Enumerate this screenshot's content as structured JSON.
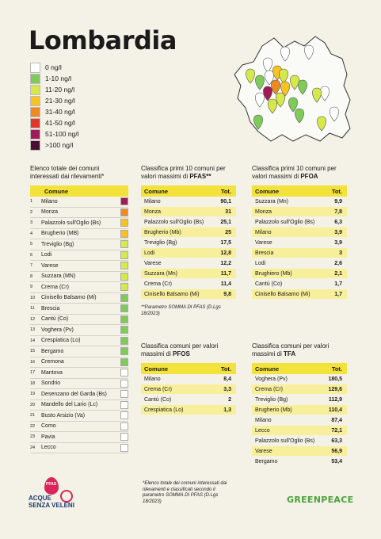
{
  "title": "Lombardia",
  "legend": [
    {
      "label": "0 ng/l",
      "color": "#ffffff"
    },
    {
      "label": "1-10 ng/l",
      "color": "#7ecb5a"
    },
    {
      "label": "11-20 ng/l",
      "color": "#d7e84a"
    },
    {
      "label": "21-30 ng/l",
      "color": "#f8c321"
    },
    {
      "label": "31-40 ng/l",
      "color": "#f08a1e"
    },
    {
      "label": "41-50 ng/l",
      "color": "#e2362a"
    },
    {
      "label": "51-100 ng/l",
      "color": "#a11a58"
    },
    {
      ">100": "",
      "label": ">100 ng/l",
      "color": "#4a0d33"
    }
  ],
  "left_list": {
    "title": "Elenco totale dei comuni interessati dai rilevamenti*",
    "header": "Comune",
    "rows": [
      {
        "n": "1",
        "name": "Milano",
        "color": "#a11a58"
      },
      {
        "n": "2",
        "name": "Monza",
        "color": "#f08a1e"
      },
      {
        "n": "3",
        "name": "Palazzolo sull'Oglio (Bs)",
        "color": "#f8c321"
      },
      {
        "n": "4",
        "name": "Brugherio (MB)",
        "color": "#f8c321"
      },
      {
        "n": "5",
        "name": "Treviglio (Bg)",
        "color": "#d7e84a"
      },
      {
        "n": "6",
        "name": "Lodi",
        "color": "#d7e84a"
      },
      {
        "n": "7",
        "name": "Varese",
        "color": "#d7e84a"
      },
      {
        "n": "8",
        "name": "Suzzara (MN)",
        "color": "#d7e84a"
      },
      {
        "n": "9",
        "name": "Crema (Cr)",
        "color": "#d7e84a"
      },
      {
        "n": "10",
        "name": "Cinisello Balsamo (Mi)",
        "color": "#7ecb5a"
      },
      {
        "n": "11",
        "name": "Brescia",
        "color": "#7ecb5a"
      },
      {
        "n": "12",
        "name": "Cantù (Co)",
        "color": "#7ecb5a"
      },
      {
        "n": "13",
        "name": "Voghera (Pv)",
        "color": "#7ecb5a"
      },
      {
        "n": "14",
        "name": "Crespiatica (Lo)",
        "color": "#7ecb5a"
      },
      {
        "n": "15",
        "name": "Bergamo",
        "color": "#7ecb5a"
      },
      {
        "n": "16",
        "name": "Cremona",
        "color": "#7ecb5a"
      },
      {
        "n": "17",
        "name": "Mantova",
        "color": "#ffffff"
      },
      {
        "n": "18",
        "name": "Sondrio",
        "color": "#ffffff"
      },
      {
        "n": "19",
        "name": "Desenzano del Garda (Bs)",
        "color": "#ffffff"
      },
      {
        "n": "20",
        "name": "Mandello del Lario (Lc)",
        "color": "#ffffff"
      },
      {
        "n": "21",
        "name": "Busto Arsizio (Va)",
        "color": "#ffffff"
      },
      {
        "n": "22",
        "name": "Como",
        "color": "#ffffff"
      },
      {
        "n": "23",
        "name": "Pavia",
        "color": "#ffffff"
      },
      {
        "n": "24",
        "name": "Lecco",
        "color": "#ffffff"
      }
    ]
  },
  "pfas": {
    "title_a": "Classifica primi 10 comuni per valori massimi di ",
    "title_b": "PFAS**",
    "h_comune": "Comune",
    "h_tot": "Tot.",
    "rows": [
      {
        "c": "Milano",
        "v": "90,1"
      },
      {
        "c": "Monza",
        "v": "31"
      },
      {
        "c": "Palazzolo sull'Oglio (Bs)",
        "v": "25,1"
      },
      {
        "c": "Brugherio (Mb)",
        "v": "25"
      },
      {
        "c": "Treviglio (Bg)",
        "v": "17,5"
      },
      {
        "c": "Lodi",
        "v": "12,8"
      },
      {
        "c": "Varese",
        "v": "12,2"
      },
      {
        "c": "Suzzara (Mn)",
        "v": "11,7"
      },
      {
        "c": "Crema (Cr)",
        "v": "11,4"
      },
      {
        "c": "Cinisello Balsamo (Mi)",
        "v": "9,8"
      }
    ],
    "note": "**Parametro SOMMA DI PFAS (D.Lgs 18/2023)"
  },
  "pfoa": {
    "title_a": "Classifica primi 10 comuni per valori massimi di ",
    "title_b": "PFOA",
    "h_comune": "Comune",
    "h_tot": "Tot.",
    "rows": [
      {
        "c": "Suzzara (Mn)",
        "v": "9,9"
      },
      {
        "c": "Monza",
        "v": "7,8"
      },
      {
        "c": "Palazzolo sull'Oglio (Bs)",
        "v": "6,3"
      },
      {
        "c": "Milano",
        "v": "3,9"
      },
      {
        "c": "Varese",
        "v": "3,9"
      },
      {
        "c": "Brescia",
        "v": "3"
      },
      {
        "c": "Lodi",
        "v": "2,6"
      },
      {
        "c": "Brughiero (Mb)",
        "v": "2,1"
      },
      {
        "c": "Cantù (Co)",
        "v": "1,7"
      },
      {
        "c": "Cinisello Balsamo (Mi)",
        "v": "1,7"
      }
    ]
  },
  "pfos": {
    "title_a": "Classifica comuni per valori massimi di ",
    "title_b": "PFOS",
    "h_comune": "Comune",
    "h_tot": "Tot.",
    "rows": [
      {
        "c": "Milano",
        "v": "8,4"
      },
      {
        "c": "Crema (Cr)",
        "v": "3,3"
      },
      {
        "c": "Cantù (Co)",
        "v": "2"
      },
      {
        "c": "Crespiatica (Lo)",
        "v": "1,3"
      }
    ]
  },
  "tfa": {
    "title_a": "Classifica comuni per valori massimi di ",
    "title_b": "TFA",
    "h_comune": "Comune",
    "h_tot": "Tot.",
    "rows": [
      {
        "c": "Voghera (Pv)",
        "v": "180,5"
      },
      {
        "c": "Crema (Cr)",
        "v": "129,6"
      },
      {
        "c": "Treviglio (Bg)",
        "v": "112,9"
      },
      {
        "c": "Brugherio (Mb)",
        "v": "110,4"
      },
      {
        "c": "Milano",
        "v": "87,4"
      },
      {
        "c": "Lecco",
        "v": "72,1"
      },
      {
        "c": "Palazzolo sull'Oglio (Bs)",
        "v": "63,3"
      },
      {
        "c": "Varese",
        "v": "56,9"
      },
      {
        "c": "Bergamo",
        "v": "53,4"
      }
    ]
  },
  "footnote": "*Elenco totale dei comuni interessati dai rilevamenti e classificati secondo il parametro SOMMA DI PFAS (D.Lgs 18/2023)",
  "logo_left": {
    "tag": "PFAS",
    "line1": "ACQUE",
    "line2": "SENZA VELENI"
  },
  "logo_right": "GREENPEACE"
}
